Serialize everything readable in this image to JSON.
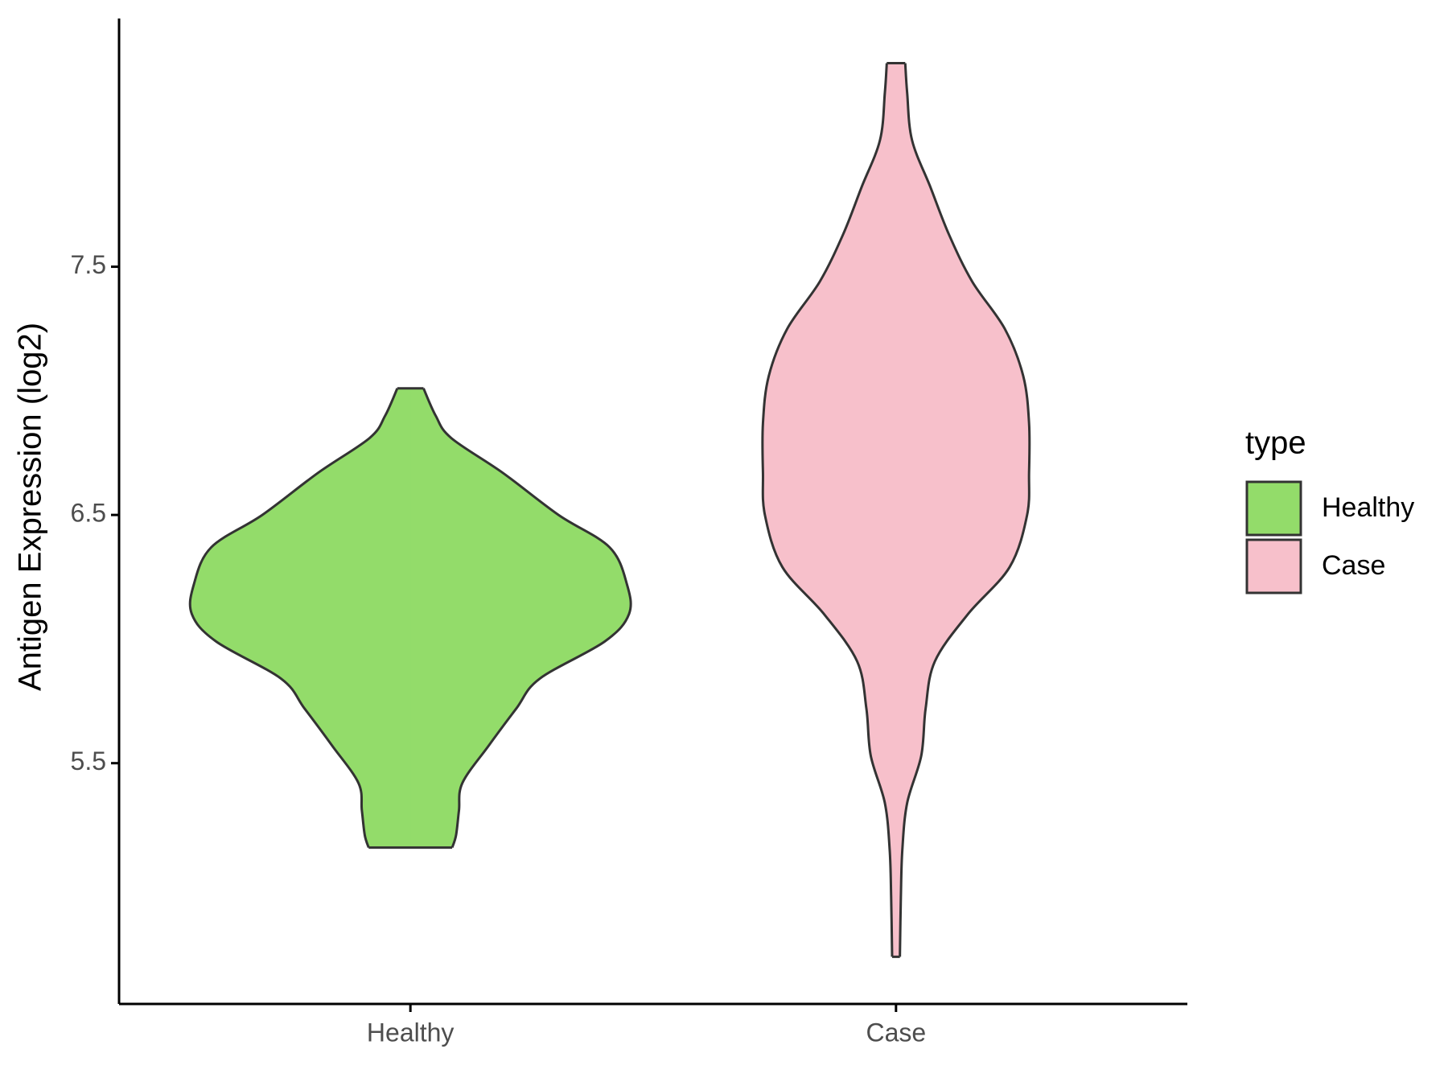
{
  "chart_data": {
    "type": "violin",
    "y_label": "Antigen Expression (log2)",
    "categories": [
      "Healthy",
      "Case"
    ],
    "ylim": [
      4.53,
      8.5
    ],
    "yticks": [
      5.5,
      6.5,
      7.5
    ],
    "legend_title": "type",
    "legend_position": "right",
    "series": [
      {
        "name": "Healthy",
        "color": "#93dc6a",
        "y": [
          7.01,
          6.9,
          6.81,
          6.67,
          6.5,
          6.37,
          6.22,
          6.1,
          5.99,
          5.84,
          5.72,
          5.57,
          5.42,
          5.31,
          5.21,
          5.16
        ],
        "width": [
          0.027,
          0.052,
          0.084,
          0.19,
          0.305,
          0.41,
          0.446,
          0.45,
          0.4,
          0.266,
          0.218,
          0.161,
          0.107,
          0.1,
          0.094,
          0.086
        ]
      },
      {
        "name": "Case",
        "color": "#f7c0cb",
        "y": [
          8.32,
          8.2,
          8.01,
          7.82,
          7.63,
          7.44,
          7.25,
          7.06,
          6.87,
          6.67,
          6.5,
          6.29,
          6.1,
          5.91,
          5.72,
          5.53,
          5.34,
          5.15,
          4.96,
          4.72
        ],
        "width": [
          0.019,
          0.023,
          0.033,
          0.071,
          0.109,
          0.157,
          0.224,
          0.262,
          0.274,
          0.274,
          0.27,
          0.234,
          0.148,
          0.08,
          0.061,
          0.052,
          0.023,
          0.013,
          0.01,
          0.008
        ]
      }
    ]
  }
}
